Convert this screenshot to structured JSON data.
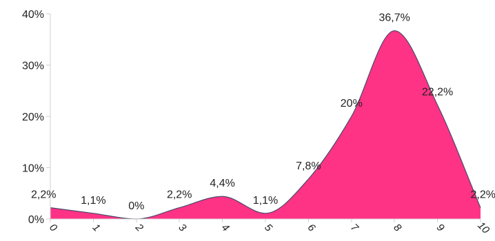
{
  "chart_data": {
    "type": "area",
    "x": [
      0,
      1,
      2,
      3,
      4,
      5,
      6,
      7,
      8,
      9,
      10
    ],
    "x_tick_labels": [
      "0",
      "1",
      "2",
      "3",
      "4",
      "5",
      "6",
      "7",
      "8",
      "9",
      "10"
    ],
    "values": [
      2.2,
      1.1,
      0,
      2.2,
      4.4,
      1.1,
      7.8,
      20,
      36.7,
      22.2,
      2.2
    ],
    "data_labels": [
      "2,2%",
      "1,1%",
      "0%",
      "2,2%",
      "4,4%",
      "1,1%",
      "7,8%",
      "20%",
      "36,7%",
      "22,2%",
      "2,2%"
    ],
    "y_tick_values": [
      0,
      10,
      20,
      30,
      40
    ],
    "y_tick_labels": [
      "0%",
      "10%",
      "20%",
      "30%",
      "40%"
    ],
    "ylim": [
      0,
      40
    ],
    "xlim": [
      0,
      10
    ],
    "title": "",
    "xlabel": "",
    "ylabel": "",
    "fill_color": "#ff3385",
    "stroke_color": "#4a4a6a",
    "grid": false,
    "legend": "none"
  }
}
